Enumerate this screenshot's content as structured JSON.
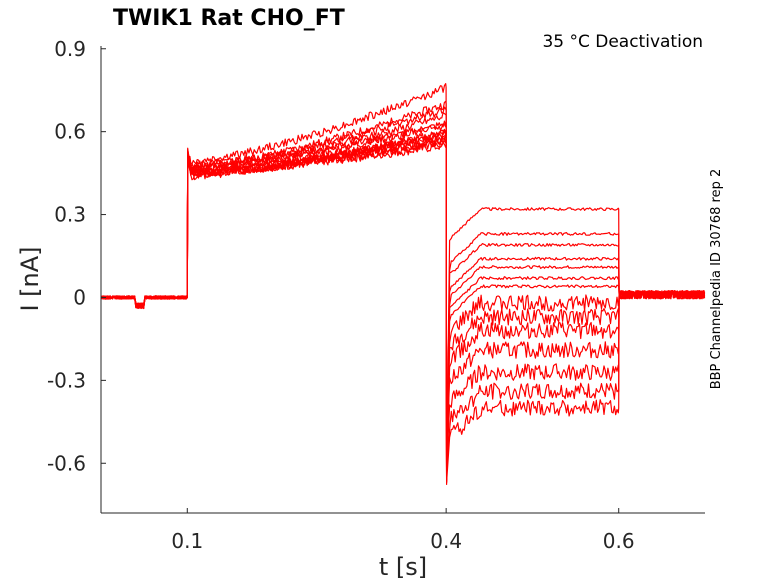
{
  "chart_data": {
    "type": "line",
    "title": "TWIK1  Rat  CHO_FT",
    "condition": "35 °C  Deactivation",
    "side_label": "BBP Channelpedia ID 30768 rep 2",
    "xlabel": "t [s]",
    "ylabel": "I [nA]",
    "xlim": [
      0.0,
      0.7
    ],
    "ylim": [
      -0.78,
      0.91
    ],
    "xticks": [
      0.1,
      0.4,
      0.6
    ],
    "xtick_labels": [
      "0.1",
      "0.4",
      "0.6"
    ],
    "yticks": [
      0.9,
      0.6,
      0.3,
      0,
      -0.3,
      -0.6
    ],
    "ytick_labels": [
      "0.9",
      "0.6",
      "0.3",
      "0",
      "-0.3",
      "-0.6"
    ],
    "grid": false,
    "trace_color": "#ff0000",
    "protocol": {
      "prepulse_dip": {
        "t_start": 0.04,
        "t_end": 0.05,
        "i": -0.03
      },
      "step_on": 0.1,
      "step_on_spike": 0.54,
      "step1_start_band": [
        0.44,
        0.49
      ],
      "step1_end_band": [
        0.52,
        0.76
      ],
      "step2_on": 0.4,
      "step2_off": 0.6,
      "transient_min": -0.64,
      "tail_after": 0.01
    },
    "series": [
      {
        "step1_start": 0.45,
        "step1_end": 0.56,
        "step2_level": 0.32
      },
      {
        "step1_start": 0.47,
        "step1_end": 0.58,
        "step2_level": 0.23
      },
      {
        "step1_start": 0.46,
        "step1_end": 0.57,
        "step2_level": 0.19
      },
      {
        "step1_start": 0.44,
        "step1_end": 0.6,
        "step2_level": 0.14
      },
      {
        "step1_start": 0.45,
        "step1_end": 0.55,
        "step2_level": 0.11
      },
      {
        "step1_start": 0.48,
        "step1_end": 0.62,
        "step2_level": 0.07
      },
      {
        "step1_start": 0.46,
        "step1_end": 0.66,
        "step2_level": 0.04
      },
      {
        "step1_start": 0.45,
        "step1_end": 0.59,
        "step2_level": -0.02
      },
      {
        "step1_start": 0.47,
        "step1_end": 0.7,
        "step2_level": -0.07
      },
      {
        "step1_start": 0.49,
        "step1_end": 0.76,
        "step2_level": -0.12
      },
      {
        "step1_start": 0.45,
        "step1_end": 0.57,
        "step2_level": -0.19
      },
      {
        "step1_start": 0.46,
        "step1_end": 0.63,
        "step2_level": -0.27
      },
      {
        "step1_start": 0.44,
        "step1_end": 0.6,
        "step2_level": -0.34
      },
      {
        "step1_start": 0.47,
        "step1_end": 0.68,
        "step2_level": -0.4
      }
    ]
  }
}
